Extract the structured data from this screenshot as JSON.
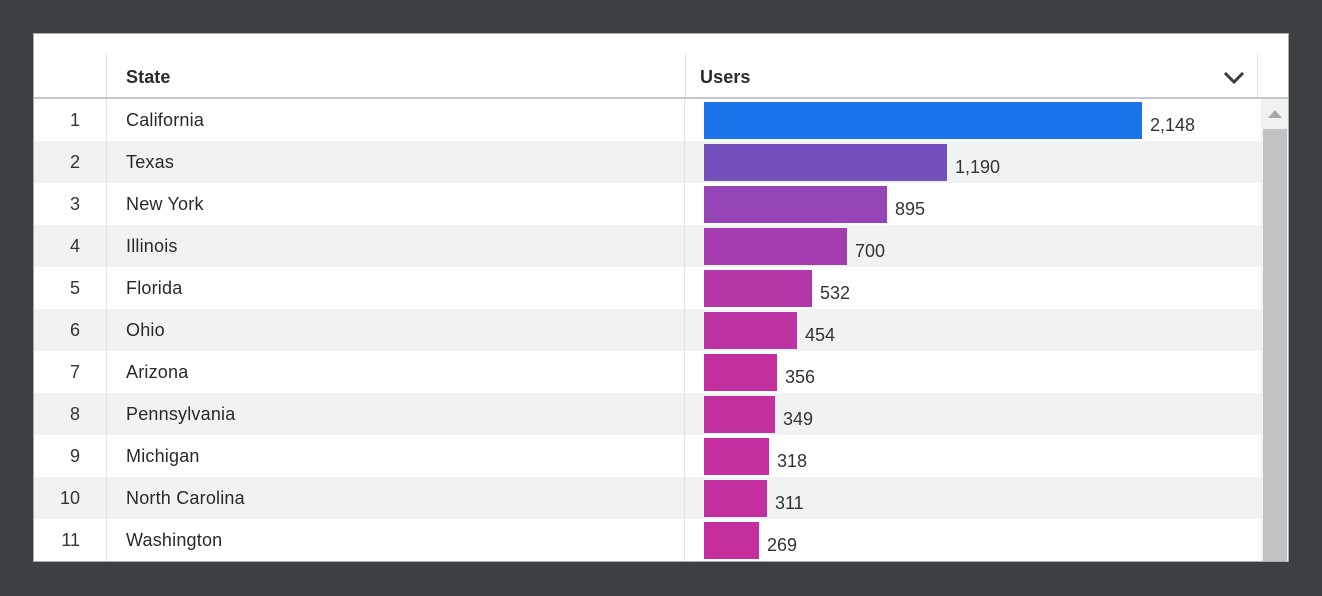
{
  "window": {
    "background_color": "#3c4043",
    "card_background": "#ffffff",
    "zebra_stripe_color": "#f1f2f2"
  },
  "table": {
    "header": {
      "rank_label": "",
      "state_label": "State",
      "users_label": "Users",
      "sort_icon": "chevron-down-icon"
    },
    "scrollbar": {
      "up_icon": "triangle-up-icon",
      "thumb_color": "#c1c2c4",
      "track_color": "#f0f1f1"
    }
  },
  "chart_data": {
    "type": "bar",
    "orientation": "horizontal",
    "title": "",
    "xlabel": "Users",
    "ylabel": "State",
    "max_value": 2148,
    "grid": false,
    "legend": false,
    "ranks": [
      "1",
      "2",
      "3",
      "4",
      "5",
      "6",
      "7",
      "8",
      "9",
      "10",
      "11"
    ],
    "categories": [
      "California",
      "Texas",
      "New York",
      "Illinois",
      "Florida",
      "Ohio",
      "Arizona",
      "Pennsylvania",
      "Michigan",
      "North Carolina",
      "Washington"
    ],
    "values": [
      2148,
      1190,
      895,
      700,
      532,
      454,
      356,
      349,
      318,
      311,
      269
    ],
    "value_labels": [
      "2,148",
      "1,190",
      "895",
      "700",
      "532",
      "454",
      "356",
      "349",
      "318",
      "311",
      "269"
    ],
    "bar_colors": [
      "#1a73e8",
      "#7450bd",
      "#9545b5",
      "#a53db0",
      "#b337a9",
      "#bc33a4",
      "#c2309f",
      "#c2309f",
      "#c32f9e",
      "#c32f9e",
      "#c42e9d"
    ]
  }
}
